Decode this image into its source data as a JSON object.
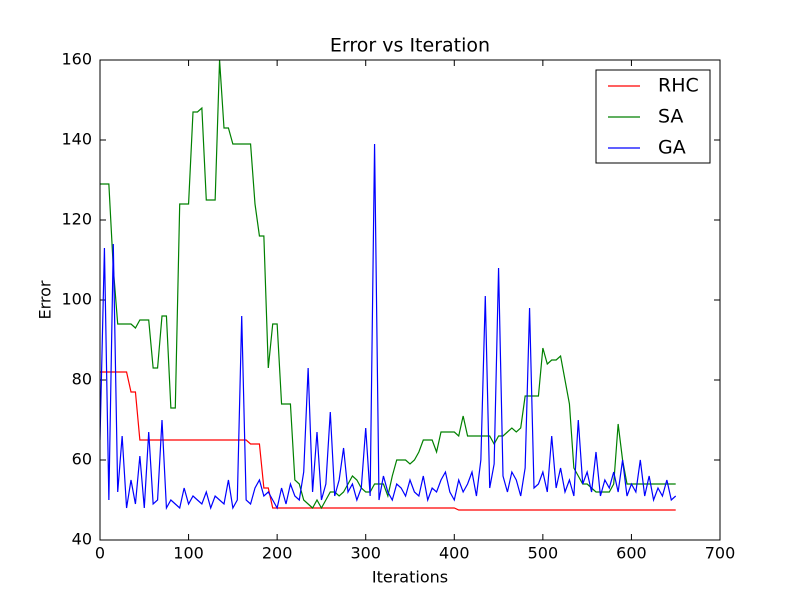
{
  "chart_data": {
    "type": "line",
    "title": "Error vs Iteration",
    "x_label": "Iterations",
    "y_label": "Error",
    "x": [
      0,
      5,
      10,
      15,
      20,
      25,
      30,
      35,
      40,
      45,
      50,
      55,
      60,
      65,
      70,
      75,
      80,
      85,
      90,
      95,
      100,
      105,
      110,
      115,
      120,
      125,
      130,
      135,
      140,
      145,
      150,
      155,
      160,
      165,
      170,
      175,
      180,
      185,
      190,
      195,
      200,
      205,
      210,
      215,
      220,
      225,
      230,
      235,
      240,
      245,
      250,
      255,
      260,
      265,
      270,
      275,
      280,
      285,
      290,
      295,
      300,
      305,
      310,
      315,
      320,
      325,
      330,
      335,
      340,
      345,
      350,
      355,
      360,
      365,
      370,
      375,
      380,
      385,
      390,
      395,
      400,
      405,
      410,
      415,
      420,
      425,
      430,
      435,
      440,
      445,
      450,
      455,
      460,
      465,
      470,
      475,
      480,
      485,
      490,
      495,
      500,
      505,
      510,
      515,
      520,
      525,
      530,
      535,
      540,
      545,
      550,
      555,
      560,
      565,
      570,
      575,
      580,
      585,
      590,
      595,
      600,
      605,
      610,
      615,
      620,
      625,
      630,
      635,
      640,
      645,
      650
    ],
    "series": [
      {
        "name": "RHC",
        "color": "#ff0000",
        "values": [
          82,
          82,
          82,
          82,
          82,
          82,
          82,
          77,
          77,
          65,
          65,
          65,
          65,
          65,
          65,
          65,
          65,
          65,
          65,
          65,
          65,
          65,
          65,
          65,
          65,
          65,
          65,
          65,
          65,
          65,
          65,
          65,
          65,
          65,
          64,
          64,
          64,
          53,
          53,
          48,
          48,
          48,
          48,
          48,
          48,
          48,
          48,
          48,
          48,
          48,
          48,
          48,
          48,
          48,
          48,
          48,
          48,
          48,
          48,
          48,
          48,
          48,
          48,
          48,
          48,
          48,
          48,
          48,
          48,
          48,
          48,
          48,
          48,
          48,
          48,
          48,
          48,
          48,
          48,
          48,
          48,
          47.5,
          47.5,
          47.5,
          47.5,
          47.5,
          47.5,
          47.5,
          47.5,
          47.5,
          47.5,
          47.5,
          47.5,
          47.5,
          47.5,
          47.5,
          47.5,
          47.5,
          47.5,
          47.5,
          47.5,
          47.5,
          47.5,
          47.5,
          47.5,
          47.5,
          47.5,
          47.5,
          47.5,
          47.5,
          47.5,
          47.5,
          47.5,
          47.5,
          47.5,
          47.5,
          47.5,
          47.5,
          47.5,
          47.5,
          47.5,
          47.5,
          47.5,
          47.5,
          47.5,
          47.5,
          47.5,
          47.5,
          47.5,
          47.5,
          47.5
        ]
      },
      {
        "name": "SA",
        "color": "#008000",
        "values": [
          129,
          129,
          129,
          108,
          94,
          94,
          94,
          94,
          93,
          95,
          95,
          95,
          83,
          83,
          96,
          96,
          73,
          73,
          124,
          124,
          124,
          147,
          147,
          148,
          125,
          125,
          125,
          160,
          143,
          143,
          139,
          139,
          139,
          139,
          139,
          124,
          116,
          116,
          83,
          94,
          94,
          74,
          74,
          74,
          55,
          54,
          50,
          49,
          48,
          50,
          48,
          50,
          52,
          52,
          51,
          52,
          54,
          56,
          55,
          53,
          52,
          52,
          54,
          54,
          54,
          51,
          56,
          60,
          60,
          60,
          59,
          60,
          62,
          65,
          65,
          65,
          62,
          67,
          67,
          67,
          67,
          66,
          71,
          66,
          66,
          66,
          66,
          66,
          66,
          64,
          66,
          66,
          67,
          68,
          67,
          68,
          76,
          76,
          76,
          76,
          88,
          84,
          85,
          85,
          86,
          80,
          74,
          58,
          56,
          54,
          54,
          53,
          52,
          52,
          52,
          52,
          54,
          69,
          60,
          54,
          54,
          54,
          54,
          54,
          54,
          54,
          54,
          54,
          54,
          54,
          54
        ]
      },
      {
        "name": "GA",
        "color": "#0000ff",
        "values": [
          65,
          113,
          50,
          114,
          52,
          66,
          48,
          55,
          49,
          61,
          48,
          67,
          49,
          50,
          70,
          48,
          50,
          49,
          48,
          53,
          49,
          51,
          50,
          49,
          52,
          48,
          51,
          50,
          49,
          55,
          48,
          50,
          96,
          50,
          49,
          53,
          55,
          51,
          52,
          50,
          48,
          53,
          49,
          54,
          51,
          50,
          57,
          83,
          52,
          67,
          50,
          54,
          72,
          51,
          55,
          63,
          52,
          54,
          50,
          53,
          68,
          51,
          139,
          50,
          56,
          52,
          50,
          54,
          53,
          51,
          55,
          52,
          51,
          56,
          50,
          53,
          52,
          55,
          57,
          52,
          50,
          55,
          52,
          54,
          57,
          51,
          60,
          101,
          53,
          59,
          108,
          56,
          52,
          57,
          55,
          51,
          58,
          98,
          53,
          54,
          57,
          52,
          66,
          53,
          58,
          52,
          55,
          51,
          70,
          54,
          57,
          52,
          62,
          51,
          55,
          53,
          57,
          52,
          60,
          51,
          54,
          52,
          60,
          51,
          56,
          50,
          53,
          51,
          55,
          50,
          51
        ]
      }
    ],
    "xlim": [
      0,
      700
    ],
    "ylim": [
      40,
      160
    ],
    "xticks": [
      0,
      100,
      200,
      300,
      400,
      500,
      600,
      700
    ],
    "yticks": [
      40,
      60,
      80,
      100,
      120,
      140,
      160
    ],
    "grid": false,
    "legend": "upper right"
  }
}
